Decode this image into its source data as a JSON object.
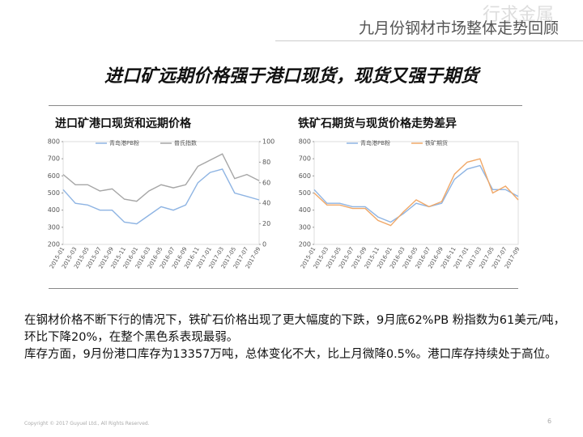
{
  "header": {
    "title": "九月份钢材市场整体走势回顾",
    "watermark": "行求金属"
  },
  "headline": "进口矿远期价格强于港口现货，现货又强于期货",
  "chart_data": [
    {
      "type": "line",
      "title": "进口矿港口现货和远期价格",
      "categories": [
        "2015-01",
        "2015-03",
        "2015-05",
        "2015-07",
        "2015-09",
        "2015-11",
        "2016-01",
        "2016-03",
        "2016-05",
        "2016-07",
        "2016-09",
        "2016-11",
        "2017-01",
        "2017-03",
        "2017-05",
        "2017-07",
        "2017-09"
      ],
      "series": [
        {
          "name": "青岛港PB粉",
          "color": "#8eb4e3",
          "values": [
            520,
            440,
            430,
            400,
            400,
            330,
            320,
            370,
            420,
            400,
            430,
            560,
            620,
            640,
            500,
            480,
            460
          ]
        },
        {
          "name": "普氏指数",
          "color": "#a6a6a6",
          "axis": "y2",
          "values": [
            68,
            58,
            58,
            52,
            54,
            44,
            42,
            52,
            58,
            55,
            58,
            76,
            82,
            88,
            64,
            68,
            62
          ]
        }
      ],
      "ylim": [
        200,
        800
      ],
      "yticks": [
        200,
        300,
        400,
        500,
        600,
        700,
        800
      ],
      "y2lim": [
        0,
        100
      ],
      "y2ticks": [
        0,
        20,
        40,
        60,
        80,
        100
      ],
      "grid": false
    },
    {
      "type": "line",
      "title": "铁矿石期货与现货价格走势差异",
      "categories": [
        "2015-01",
        "2015-03",
        "2015-05",
        "2015-07",
        "2015-09",
        "2015-11",
        "2016-01",
        "2016-03",
        "2016-05",
        "2016-07",
        "2016-09",
        "2016-11",
        "2017-01",
        "2017-03",
        "2017-05",
        "2017-07",
        "2017-09"
      ],
      "series": [
        {
          "name": "青岛港PB粉",
          "color": "#8eb4e3",
          "values": [
            520,
            440,
            440,
            420,
            420,
            360,
            330,
            380,
            440,
            420,
            440,
            580,
            640,
            660,
            520,
            520,
            480
          ]
        },
        {
          "name": "铁矿期货",
          "color": "#f0a868",
          "values": [
            500,
            430,
            430,
            410,
            410,
            340,
            310,
            390,
            460,
            420,
            450,
            610,
            680,
            700,
            500,
            540,
            460
          ]
        }
      ],
      "ylim": [
        200,
        800
      ],
      "yticks": [
        200,
        300,
        400,
        500,
        600,
        700,
        800
      ],
      "grid": false
    }
  ],
  "body": [
    "在钢材价格不断下行的情况下，铁矿石价格出现了更大幅度的下跌，9月底62%PB 粉指数为61美元/吨，环比下降20%，在整个黑色系表现最弱。",
    "库存方面，9月份港口库存为13357万吨，总体变化不大，比上月微降0.5%。港口库存持续处于高位。"
  ],
  "footer": {
    "copyright": "Copyright © 2017 Guyuel Ltd., All Rights Reserved.",
    "page": "6"
  }
}
